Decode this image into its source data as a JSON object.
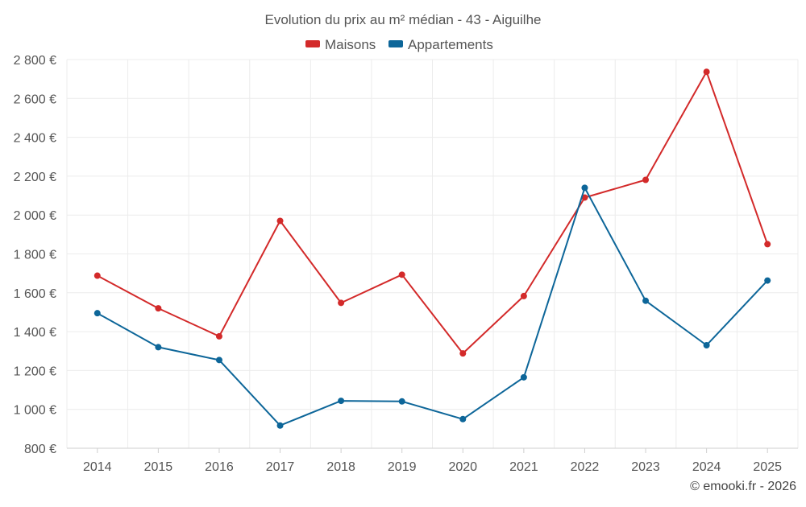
{
  "chart_data": {
    "type": "line",
    "title": "Evolution du prix au m² médian - 43 - Aiguilhe",
    "categories": [
      "2014",
      "2015",
      "2016",
      "2017",
      "2018",
      "2019",
      "2020",
      "2021",
      "2022",
      "2023",
      "2024",
      "2025"
    ],
    "series": [
      {
        "name": "Maisons",
        "color": "#d32a2a",
        "values": [
          1688,
          1520,
          1376,
          1970,
          1548,
          1693,
          1288,
          1583,
          2090,
          2181,
          2737,
          1850
        ]
      },
      {
        "name": "Appartements",
        "color": "#0d6699",
        "values": [
          1495,
          1320,
          1254,
          917,
          1044,
          1041,
          950,
          1165,
          2140,
          1559,
          1330,
          1663
        ]
      }
    ],
    "ylim": [
      800,
      2800
    ],
    "y_ticks": [
      800,
      1000,
      1200,
      1400,
      1600,
      1800,
      2000,
      2200,
      2400,
      2600,
      2800
    ],
    "y_tick_labels": [
      "800 €",
      "1 000 €",
      "1 200 €",
      "1 400 €",
      "1 600 €",
      "1 800 €",
      "2 000 €",
      "2 200 €",
      "2 400 €",
      "2 600 €",
      "2 800 €"
    ],
    "xlabel": "",
    "ylabel": "",
    "grid": true,
    "legend_position": "top-center"
  },
  "footer": {
    "credit": "© emooki.fr - 2026"
  }
}
